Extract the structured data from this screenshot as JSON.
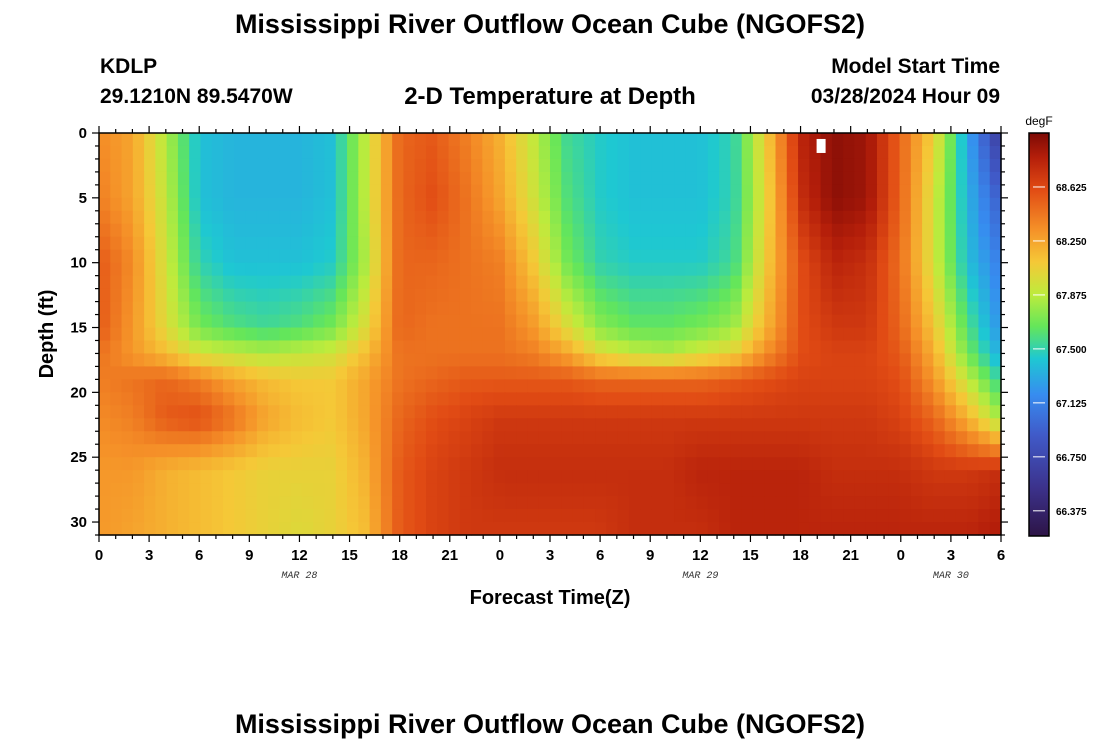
{
  "header": {
    "title": "Mississippi River Outflow Ocean Cube (NGOFS2)",
    "station_id": "KDLP",
    "coords": "29.1210N  89.5470W",
    "subtitle": "2-D Temperature at Depth",
    "model_start_label": "Model Start Time",
    "model_start_value": "03/28/2024 Hour 09"
  },
  "footer": {
    "title": "Mississippi River Outflow Ocean Cube (NGOFS2)"
  },
  "chart_data": {
    "type": "heatmap",
    "xlabel": "Forecast Time(Z)",
    "ylabel": "Depth (ft)",
    "x_hours_range": [
      0,
      54
    ],
    "y_range": [
      0,
      31
    ],
    "x_tick_labels": [
      "0",
      "3",
      "6",
      "9",
      "12",
      "15",
      "18",
      "21",
      "0",
      "3",
      "6",
      "9",
      "12",
      "15",
      "18",
      "21",
      "0",
      "3",
      "6"
    ],
    "x_tick_hours": [
      0,
      3,
      6,
      9,
      12,
      15,
      18,
      21,
      24,
      27,
      30,
      33,
      36,
      39,
      42,
      45,
      48,
      51,
      54
    ],
    "date_labels": [
      {
        "label": "MAR 28",
        "hour": 12
      },
      {
        "label": "MAR 29",
        "hour": 36
      },
      {
        "label": "MAR 30",
        "hour": 51
      }
    ],
    "y_ticks": [
      0,
      5,
      10,
      15,
      20,
      25,
      30
    ],
    "colorbar": {
      "unit": "degF",
      "min": 66.2,
      "max": 69.0,
      "ticks": [
        "68.625",
        "68.250",
        "67.875",
        "67.500",
        "67.125",
        "66.750",
        "66.375"
      ]
    },
    "marker": {
      "hour": 43.2,
      "depth": 1.0
    },
    "depths_ft": [
      0,
      5,
      10,
      15,
      17,
      19,
      22,
      26,
      31
    ],
    "hours": [
      0,
      2,
      4,
      6,
      8,
      10,
      12,
      14,
      16,
      18,
      20,
      22,
      24,
      26,
      28,
      30,
      32,
      34,
      36,
      38,
      40,
      42,
      44,
      46,
      48,
      50,
      52,
      54
    ],
    "temperature_degF": [
      [
        68.35,
        68.25,
        67.85,
        67.4,
        67.35,
        67.35,
        67.35,
        67.4,
        67.9,
        68.5,
        68.55,
        68.4,
        68.2,
        67.9,
        67.55,
        67.45,
        67.4,
        67.4,
        67.4,
        67.5,
        68.1,
        68.8,
        68.95,
        68.9,
        68.5,
        68.05,
        67.3,
        66.6
      ],
      [
        68.4,
        68.25,
        67.9,
        67.4,
        67.35,
        67.35,
        67.35,
        67.4,
        67.9,
        68.5,
        68.6,
        68.45,
        68.25,
        67.95,
        67.6,
        67.45,
        67.4,
        67.4,
        67.4,
        67.5,
        68.05,
        68.75,
        68.95,
        68.9,
        68.5,
        67.95,
        67.35,
        66.9
      ],
      [
        68.55,
        68.35,
        67.95,
        67.5,
        67.4,
        67.4,
        67.4,
        67.45,
        67.85,
        68.5,
        68.5,
        68.45,
        68.4,
        68.1,
        67.7,
        67.5,
        67.45,
        67.45,
        67.45,
        67.55,
        68.1,
        68.6,
        68.8,
        68.75,
        68.45,
        67.95,
        67.4,
        67.1
      ],
      [
        68.55,
        68.3,
        68.0,
        67.7,
        67.6,
        67.55,
        67.6,
        67.7,
        68.0,
        68.5,
        68.45,
        68.45,
        68.45,
        68.3,
        68.0,
        67.75,
        67.65,
        67.65,
        67.7,
        67.8,
        68.2,
        68.6,
        68.7,
        68.7,
        68.5,
        68.1,
        67.6,
        67.2
      ],
      [
        68.45,
        68.3,
        68.15,
        67.95,
        67.9,
        67.85,
        67.9,
        67.95,
        68.15,
        68.45,
        68.45,
        68.45,
        68.45,
        68.4,
        68.25,
        68.0,
        67.9,
        67.85,
        67.95,
        68.05,
        68.35,
        68.6,
        68.65,
        68.65,
        68.55,
        68.2,
        67.7,
        67.3
      ],
      [
        68.4,
        68.45,
        68.5,
        68.4,
        68.25,
        68.15,
        68.1,
        68.1,
        68.25,
        68.45,
        68.5,
        68.55,
        68.55,
        68.55,
        68.55,
        68.5,
        68.5,
        68.5,
        68.5,
        68.55,
        68.6,
        68.65,
        68.65,
        68.65,
        68.6,
        68.3,
        67.9,
        67.5
      ],
      [
        68.35,
        68.4,
        68.55,
        68.6,
        68.45,
        68.25,
        68.15,
        68.1,
        68.25,
        68.5,
        68.6,
        68.65,
        68.7,
        68.7,
        68.7,
        68.7,
        68.7,
        68.7,
        68.7,
        68.7,
        68.7,
        68.7,
        68.7,
        68.7,
        68.65,
        68.5,
        68.2,
        67.8
      ],
      [
        68.3,
        68.3,
        68.2,
        68.15,
        68.1,
        68.05,
        68.05,
        68.05,
        68.2,
        68.55,
        68.65,
        68.7,
        68.75,
        68.75,
        68.75,
        68.75,
        68.75,
        68.75,
        68.8,
        68.8,
        68.8,
        68.8,
        68.75,
        68.75,
        68.75,
        68.7,
        68.7,
        68.75
      ],
      [
        68.3,
        68.25,
        68.2,
        68.15,
        68.1,
        68.05,
        68.0,
        68.05,
        68.15,
        68.55,
        68.65,
        68.7,
        68.7,
        68.7,
        68.7,
        68.7,
        68.75,
        68.75,
        68.75,
        68.8,
        68.8,
        68.8,
        68.8,
        68.8,
        68.8,
        68.8,
        68.8,
        68.85
      ]
    ]
  }
}
